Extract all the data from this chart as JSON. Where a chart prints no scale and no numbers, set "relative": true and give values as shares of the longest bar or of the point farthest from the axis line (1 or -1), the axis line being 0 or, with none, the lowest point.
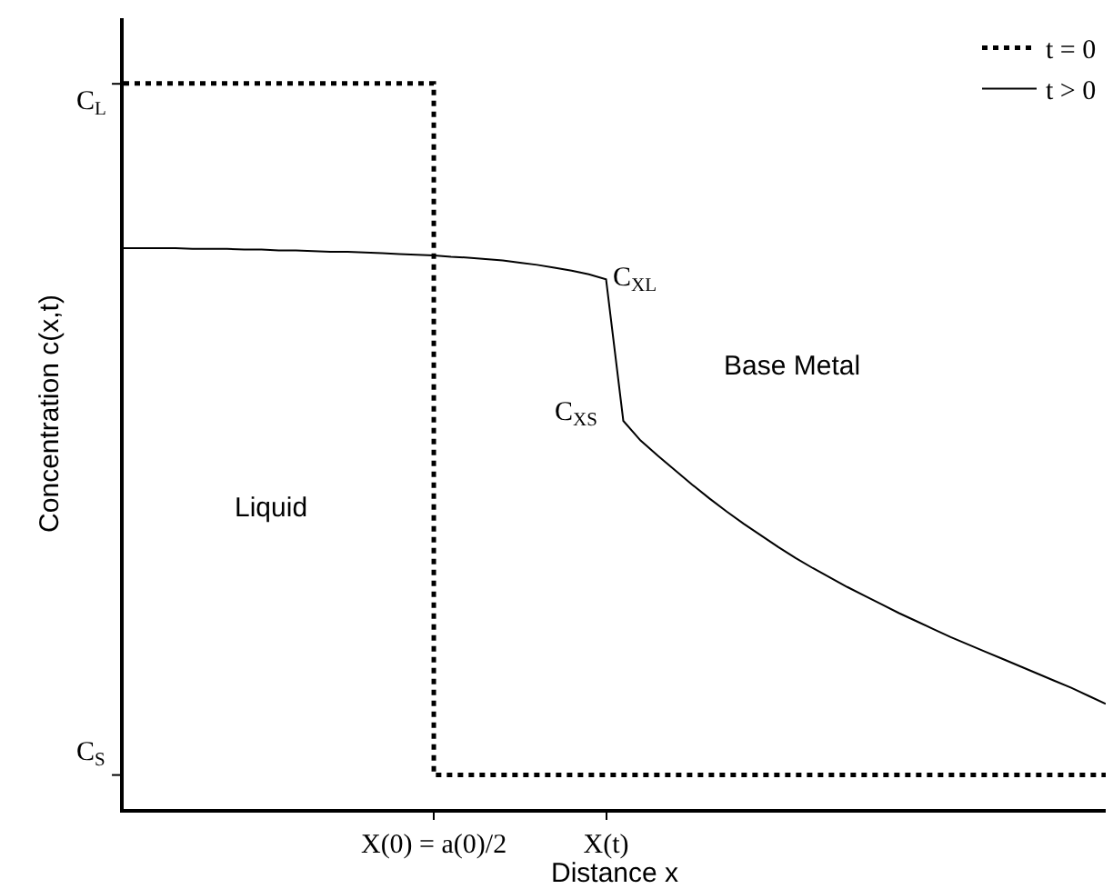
{
  "chart_data": {
    "type": "line",
    "relative": true,
    "xlabel": "Distance x",
    "ylabel": "Concentration c(x,t)",
    "categories": [
      null,
      null,
      null,
      null,
      null,
      null,
      null,
      null,
      null,
      null,
      null,
      null,
      null,
      null,
      null,
      null,
      null,
      null,
      "X(0) = a(0)/2",
      null,
      null,
      null,
      null,
      null,
      null,
      null,
      null,
      null,
      "X(t)",
      null,
      null,
      null,
      null,
      null,
      null,
      null,
      null,
      null,
      null,
      null,
      null,
      null,
      null,
      null,
      null,
      null,
      null,
      null,
      null,
      null,
      null,
      null,
      null,
      null,
      null,
      null,
      null,
      null
    ],
    "series": [
      {
        "name": "t = 0",
        "type": "step",
        "color": "#000000",
        "line_style": "dotted",
        "values": [
          1,
          1,
          1,
          1,
          1,
          1,
          1,
          1,
          1,
          1,
          1,
          1,
          1,
          1,
          1,
          1,
          1,
          1,
          0.047,
          0.047,
          0.047,
          0.047,
          0.047,
          0.047,
          0.047,
          0.047,
          0.047,
          0.047,
          0.047,
          0.047,
          0.047,
          0.047,
          0.047,
          0.047,
          0.047,
          0.047,
          0.047,
          0.047,
          0.047,
          0.047,
          0.047,
          0.047,
          0.047,
          0.047,
          0.047,
          0.047,
          0.047,
          0.047,
          0.047,
          0.047,
          0.047,
          0.047,
          0.047,
          0.047,
          0.047,
          0.047,
          0.047,
          0.047
        ]
      },
      {
        "name": "t > 0",
        "color": "#000000",
        "line_style": "solid",
        "values": [
          0.773,
          0.773,
          0.773,
          0.773,
          0.772,
          0.772,
          0.772,
          0.771,
          0.771,
          0.77,
          0.77,
          0.769,
          0.768,
          0.768,
          0.767,
          0.766,
          0.765,
          0.764,
          0.763,
          0.761,
          0.76,
          0.758,
          0.756,
          0.753,
          0.75,
          0.746,
          0.742,
          0.737,
          0.73,
          0.535,
          0.508,
          0.487,
          0.467,
          0.447,
          0.428,
          0.41,
          0.393,
          0.377,
          0.361,
          0.346,
          0.332,
          0.319,
          0.306,
          0.294,
          0.282,
          0.27,
          0.259,
          0.248,
          0.237,
          0.227,
          0.217,
          0.207,
          0.197,
          0.187,
          0.177,
          0.167,
          0.156,
          0.145
        ]
      }
    ],
    "annotations": [
      "C$_{L}$",
      "C$_{S}$",
      {
        "text": "C$_{XL}$",
        "x": "X(t)",
        "y": 0.73
      },
      "C$_{XS}$",
      "Liquid",
      "Base Metal"
    ],
    "legend": "top right",
    "grid": false,
    "marker": "none"
  }
}
